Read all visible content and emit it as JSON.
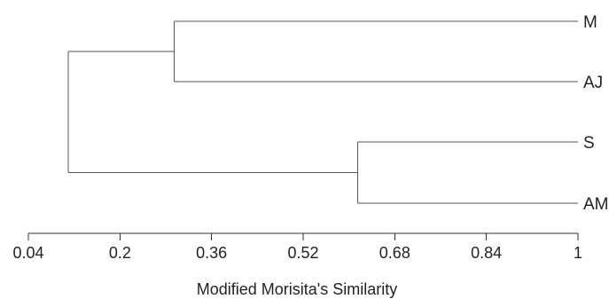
{
  "chart_data": {
    "type": "dendrogram",
    "xlabel": "Modified Morisita's Similarity",
    "xlim": [
      0.04,
      1
    ],
    "x_ticks": [
      "0.04",
      "0.2",
      "0.36",
      "0.52",
      "0.68",
      "0.84",
      "1"
    ],
    "leaves": [
      "M",
      "AJ",
      "S",
      "AM"
    ],
    "merges": [
      {
        "id": "c1",
        "children": [
          "M",
          "AJ"
        ],
        "similarity": 0.295
      },
      {
        "id": "c2",
        "children": [
          "S",
          "AM"
        ],
        "similarity": 0.615
      },
      {
        "id": "root",
        "children": [
          "c1",
          "c2"
        ],
        "similarity": 0.11
      }
    ],
    "colors": {
      "lines": "#555555",
      "text": "#222222"
    }
  }
}
